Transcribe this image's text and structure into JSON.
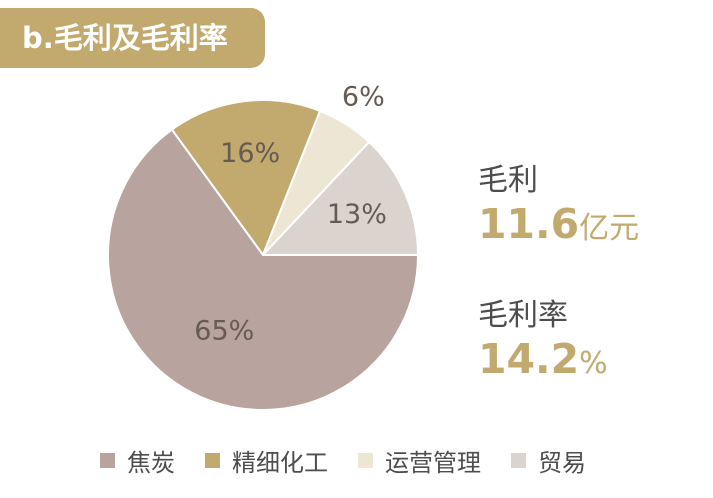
{
  "header": {
    "title": "b.毛利及毛利率"
  },
  "stats": {
    "gross_profit_label": "毛利",
    "gross_profit_value": "11.6",
    "gross_profit_unit": "亿元",
    "gross_margin_label": "毛利率",
    "gross_margin_value": "14.2",
    "gross_margin_unit": "%"
  },
  "chart_data": {
    "type": "pie",
    "title": "",
    "legend_position": "bottom",
    "slices": [
      {
        "name": "精细化工",
        "value": 16,
        "label": "16%",
        "color": "#c2a96d"
      },
      {
        "name": "运营管理",
        "value": 6,
        "label": "6%",
        "color": "#ede6d4"
      },
      {
        "name": "贸易",
        "value": 13,
        "label": "13%",
        "color": "#dbd3ce"
      },
      {
        "name": "焦炭",
        "value": 65,
        "label": "65%",
        "color": "#b8a39e"
      }
    ]
  },
  "legend": [
    {
      "name": "焦炭",
      "color": "#b8a39e"
    },
    {
      "name": "精细化工",
      "color": "#c2a96d"
    },
    {
      "name": "运营管理",
      "color": "#ede6d4"
    },
    {
      "name": "贸易",
      "color": "#dbd3ce"
    }
  ]
}
